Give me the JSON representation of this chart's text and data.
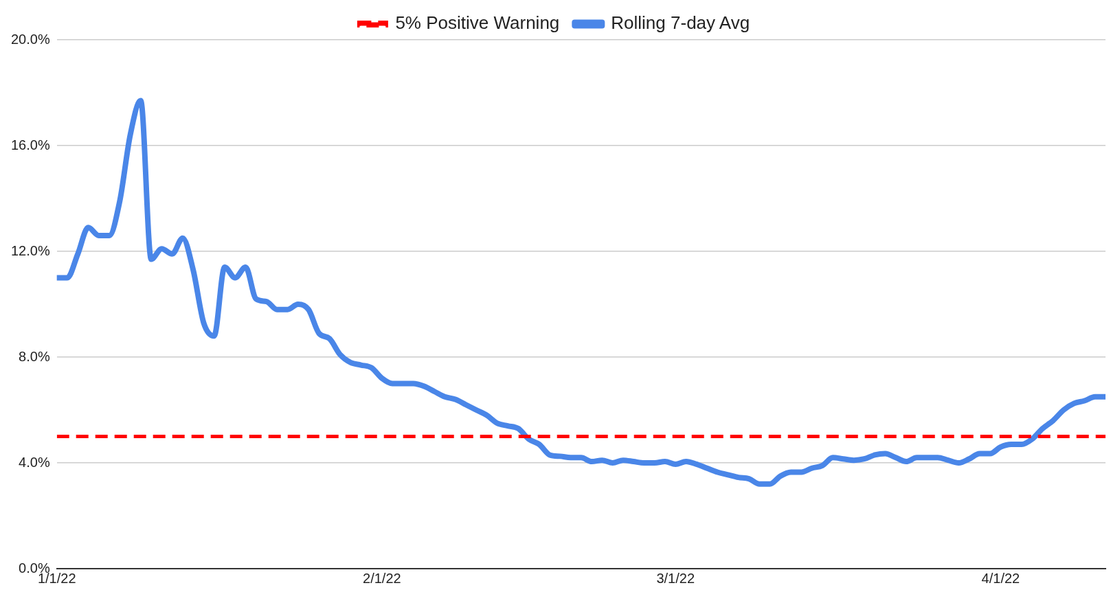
{
  "chart_data": {
    "type": "line",
    "x": [
      "2022-01-01",
      "2022-01-02",
      "2022-01-03",
      "2022-01-04",
      "2022-01-05",
      "2022-01-06",
      "2022-01-07",
      "2022-01-08",
      "2022-01-09",
      "2022-01-10",
      "2022-01-11",
      "2022-01-12",
      "2022-01-13",
      "2022-01-14",
      "2022-01-15",
      "2022-01-16",
      "2022-01-17",
      "2022-01-18",
      "2022-01-19",
      "2022-01-20",
      "2022-01-21",
      "2022-01-22",
      "2022-01-23",
      "2022-01-24",
      "2022-01-25",
      "2022-01-26",
      "2022-01-27",
      "2022-01-28",
      "2022-01-29",
      "2022-01-30",
      "2022-01-31",
      "2022-02-01",
      "2022-02-02",
      "2022-02-03",
      "2022-02-04",
      "2022-02-05",
      "2022-02-06",
      "2022-02-07",
      "2022-02-08",
      "2022-02-09",
      "2022-02-10",
      "2022-02-11",
      "2022-02-12",
      "2022-02-13",
      "2022-02-14",
      "2022-02-15",
      "2022-02-16",
      "2022-02-17",
      "2022-02-18",
      "2022-02-19",
      "2022-02-20",
      "2022-02-21",
      "2022-02-22",
      "2022-02-23",
      "2022-02-24",
      "2022-02-25",
      "2022-02-26",
      "2022-02-27",
      "2022-02-28",
      "2022-03-01",
      "2022-03-02",
      "2022-03-03",
      "2022-03-04",
      "2022-03-05",
      "2022-03-06",
      "2022-03-07",
      "2022-03-08",
      "2022-03-09",
      "2022-03-10",
      "2022-03-11",
      "2022-03-12",
      "2022-03-13",
      "2022-03-14",
      "2022-03-15",
      "2022-03-16",
      "2022-03-17",
      "2022-03-18",
      "2022-03-19",
      "2022-03-20",
      "2022-03-21",
      "2022-03-22",
      "2022-03-23",
      "2022-03-24",
      "2022-03-25",
      "2022-03-26",
      "2022-03-27",
      "2022-03-28",
      "2022-03-29",
      "2022-03-30",
      "2022-03-31",
      "2022-04-01",
      "2022-04-02",
      "2022-04-03",
      "2022-04-04",
      "2022-04-05",
      "2022-04-06",
      "2022-04-07",
      "2022-04-08",
      "2022-04-09",
      "2022-04-10",
      "2022-04-11"
    ],
    "series": [
      {
        "name": "Rolling 7-day Avg",
        "color": "#4a86e8",
        "values": [
          11.0,
          11.0,
          11.9,
          12.9,
          12.6,
          12.6,
          13.9,
          16.4,
          17.7,
          11.7,
          12.1,
          11.9,
          12.5,
          11.3,
          9.3,
          8.8,
          11.4,
          11.0,
          11.4,
          10.2,
          10.1,
          9.8,
          9.8,
          10.0,
          9.8,
          8.9,
          8.7,
          8.1,
          7.8,
          7.7,
          7.6,
          7.2,
          7.0,
          7.0,
          7.0,
          6.9,
          6.7,
          6.5,
          6.4,
          6.2,
          6.0,
          5.8,
          5.5,
          5.4,
          5.3,
          4.9,
          4.7,
          4.3,
          4.25,
          4.2,
          4.2,
          4.05,
          4.1,
          4.0,
          4.1,
          4.05,
          4.0,
          4.0,
          4.05,
          3.95,
          4.05,
          3.95,
          3.8,
          3.65,
          3.55,
          3.45,
          3.4,
          3.2,
          3.2,
          3.5,
          3.65,
          3.65,
          3.8,
          3.9,
          4.2,
          4.15,
          4.1,
          4.15,
          4.3,
          4.35,
          4.2,
          4.05,
          4.2,
          4.2,
          4.2,
          4.1,
          4.0,
          4.15,
          4.35,
          4.35,
          4.6,
          4.7,
          4.7,
          4.9,
          5.3,
          5.6,
          6.0,
          6.25,
          6.35,
          6.5,
          6.5
        ]
      }
    ],
    "ref_lines": [
      {
        "axis": "y",
        "value": 5,
        "label": "5% Positive Warning",
        "color": "#ff0000",
        "line_style": "dashed"
      }
    ],
    "xlim": [
      "2022-01-01",
      "2022-04-11"
    ],
    "xticks": [
      {
        "value": "2022-01-01",
        "label": "1/1/22"
      },
      {
        "value": "2022-02-01",
        "label": "2/1/22"
      },
      {
        "value": "2022-03-01",
        "label": "3/1/22"
      },
      {
        "value": "2022-04-01",
        "label": "4/1/22"
      }
    ],
    "ylim": [
      0,
      20
    ],
    "yticks": [
      {
        "value": 0,
        "label": "0.0%"
      },
      {
        "value": 4,
        "label": "4.0%"
      },
      {
        "value": 8,
        "label": "8.0%"
      },
      {
        "value": 12,
        "label": "12.0%"
      },
      {
        "value": 16,
        "label": "16.0%"
      },
      {
        "value": 20,
        "label": "20.0%"
      }
    ],
    "grid": "y",
    "legend": "top",
    "marker": "none",
    "line_style": "solid"
  }
}
